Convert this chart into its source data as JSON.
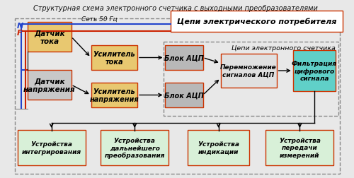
{
  "title": "Структурная схема электронного счетчика с выходными преобразователями",
  "bg_color": "#e8e8e8",
  "box_sensor_I_color": "#e8c870",
  "box_sensor_V_color": "#c8c8c8",
  "box_amp_color": "#e8c870",
  "box_adc_color": "#b8b8b8",
  "box_mult_color": "#e0e0e0",
  "box_filter_color": "#60d0c8",
  "box_consumer_color": "#ffffff",
  "box_output_color": "#d8f0d8",
  "box_edge": "#cc3300",
  "dashed_color": "#888888",
  "N_color": "#2244cc",
  "F_color": "#cc2200",
  "arrow_color": "#000000",
  "text_color": "#000000",
  "label_N": "N",
  "label_F": "F",
  "label_set50": "Сеть 50 Гц",
  "label_consumer": "Цепи электрического потребителя",
  "label_electronic": "Цепи электронного счетчика",
  "label_sensor_I": "Датчик\nтока",
  "label_sensor_V": "Датчик\nнапряжения",
  "label_amp_I": "Усилитель\nтока",
  "label_amp_V": "Усилитель\nнапряжения",
  "label_adc1": "Блок АЦП",
  "label_adc2": "Блок АЦП",
  "label_mult": "Перемножение\nсигналов АЦП",
  "label_filter": "Фильтрация\nцифрового\nсигнала",
  "label_integr": "Устройства\nинтегрирования",
  "label_further": "Устройства\nдальнейшего\nпреобразования",
  "label_display": "Устройства\nиндикации",
  "label_transmit": "Устройства\nпередачи\nизмерений"
}
